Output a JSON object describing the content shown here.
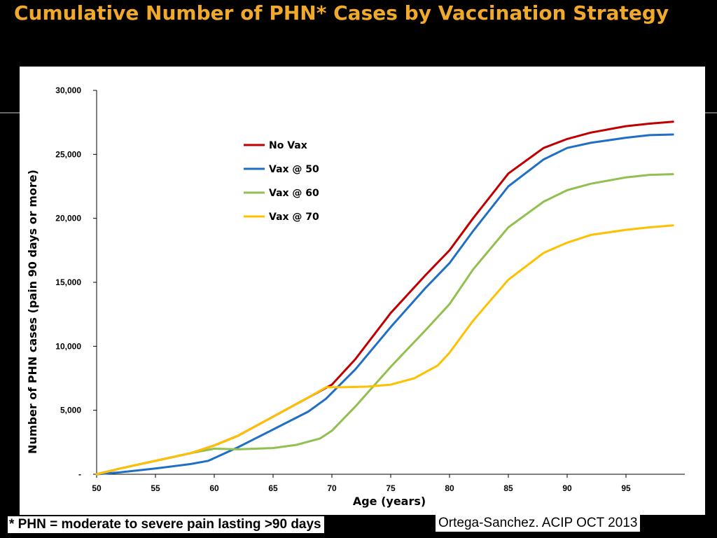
{
  "slide": {
    "title": "Cumulative Number of PHN* Cases by Vaccination Strategy",
    "footnote": "* PHN = moderate to severe pain lasting >90 days",
    "citation": "Ortega-Sanchez. ACIP OCT 2013",
    "title_color": "#f0a92a",
    "background_color": "#000000"
  },
  "chart_data": {
    "type": "line",
    "title": "",
    "xlabel": "Age (years)",
    "ylabel": "Number of PHN cases (pain 90 days or more)",
    "xlim": [
      50,
      100
    ],
    "ylim": [
      0,
      30000
    ],
    "x_ticks": [
      50,
      55,
      60,
      65,
      70,
      75,
      80,
      85,
      90,
      95
    ],
    "x_tick_labels": [
      "50",
      "55",
      "60",
      "65",
      "70",
      "75",
      "80",
      "85",
      "90",
      "95"
    ],
    "y_ticks": [
      0,
      5000,
      10000,
      15000,
      20000,
      25000,
      30000
    ],
    "y_tick_labels": [
      "-",
      "5,000",
      "10,000",
      "15,000",
      "20,000",
      "25,000",
      "30,000"
    ],
    "grid": false,
    "legend_position": "top-left",
    "series": [
      {
        "name": "No Vax",
        "color": "#c00000",
        "x": [
          50,
          52,
          55,
          58,
          60,
          62,
          65,
          68,
          70,
          72,
          75,
          78,
          80,
          82,
          85,
          88,
          90,
          92,
          95,
          97,
          99
        ],
        "y": [
          0,
          450,
          1050,
          1650,
          2250,
          3000,
          4500,
          6000,
          7000,
          9000,
          12600,
          15600,
          17500,
          20000,
          23500,
          25500,
          26200,
          26700,
          27200,
          27400,
          27550
        ]
      },
      {
        "name": "Vax @ 50",
        "color": "#1f6fc5",
        "x": [
          50,
          52,
          55,
          58,
          59.5,
          62,
          65,
          68,
          69.5,
          72,
          75,
          78,
          80,
          82,
          85,
          88,
          90,
          92,
          95,
          97,
          99
        ],
        "y": [
          0,
          150,
          450,
          800,
          1050,
          2100,
          3500,
          4900,
          5900,
          8200,
          11500,
          14600,
          16500,
          19000,
          22500,
          24600,
          25500,
          25900,
          26300,
          26500,
          26550
        ]
      },
      {
        "name": "Vax @ 60",
        "color": "#92c050",
        "x": [
          50,
          52,
          55,
          58,
          60,
          62,
          65,
          67,
          69,
          70,
          72,
          75,
          78,
          80,
          82,
          85,
          88,
          90,
          92,
          95,
          97,
          99
        ],
        "y": [
          0,
          450,
          1050,
          1650,
          2000,
          1950,
          2050,
          2300,
          2800,
          3400,
          5300,
          8400,
          11300,
          13300,
          16000,
          19300,
          21300,
          22200,
          22700,
          23200,
          23400,
          23450
        ]
      },
      {
        "name": "Vax @ 70",
        "color": "#ffc000",
        "x": [
          50,
          52,
          55,
          58,
          60,
          62,
          65,
          68,
          69.5,
          71,
          73,
          75,
          77,
          79,
          80,
          82,
          85,
          88,
          90,
          92,
          95,
          97,
          99
        ],
        "y": [
          0,
          450,
          1050,
          1650,
          2250,
          3000,
          4500,
          6000,
          6800,
          6800,
          6850,
          7000,
          7500,
          8500,
          9500,
          12000,
          15200,
          17300,
          18100,
          18700,
          19100,
          19300,
          19450
        ]
      }
    ]
  }
}
